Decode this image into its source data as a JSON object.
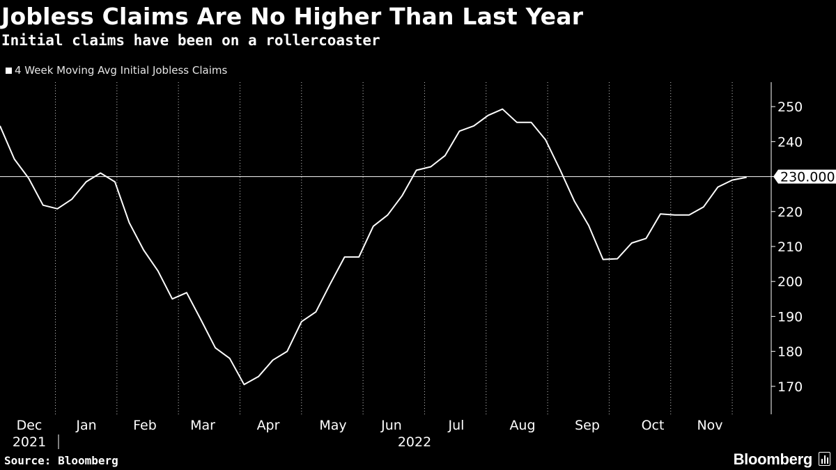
{
  "header": {
    "title": "Jobless Claims Are No Higher Than Last Year",
    "subtitle": "Initial claims have been on a rollercoaster"
  },
  "footer": {
    "source": "Source: Bloomberg",
    "brand": "Bloomberg"
  },
  "colors": {
    "background": "#000000",
    "line": "#ffffff",
    "grid": "#ffffff",
    "text": "#ffffff"
  },
  "chart_data": {
    "type": "line",
    "title": "Jobless Claims Are No Higher Than Last Year",
    "subtitle": "Initial claims have been on a rollercoaster",
    "xlabel": "",
    "ylabel": "",
    "y_axis_side": "right",
    "ylim": [
      162,
      257
    ],
    "y_ticks": [
      170,
      180,
      190,
      200,
      210,
      220,
      230,
      240,
      250
    ],
    "grid": "vertical dotted",
    "legend": "top-left",
    "reference_line": {
      "value": 230,
      "label": "230.000"
    },
    "x_month_labels": [
      "Dec",
      "Jan",
      "Feb",
      "Mar",
      "Apr",
      "May",
      "Jun",
      "Jul",
      "Aug",
      "Sep",
      "Oct",
      "Nov"
    ],
    "x_year_labels": [
      "2021",
      "2022"
    ],
    "x_range": [
      "2021-11-27",
      "2022-12-08"
    ],
    "x_gridlines": [
      "2021-12-24",
      "2022-01-23",
      "2022-02-22",
      "2022-03-24",
      "2022-04-23",
      "2022-05-23",
      "2022-06-22",
      "2022-07-22",
      "2022-08-21",
      "2022-09-20",
      "2022-10-20",
      "2022-11-19"
    ],
    "series": [
      {
        "name": "4 Week Moving Avg Initial Jobless Claims",
        "x": [
          "2021-11-27",
          "2021-12-04",
          "2021-12-11",
          "2021-12-18",
          "2021-12-25",
          "2022-01-01",
          "2022-01-08",
          "2022-01-15",
          "2022-01-22",
          "2022-01-29",
          "2022-02-05",
          "2022-02-12",
          "2022-02-19",
          "2022-02-26",
          "2022-03-05",
          "2022-03-12",
          "2022-03-19",
          "2022-03-26",
          "2022-04-02",
          "2022-04-09",
          "2022-04-16",
          "2022-04-23",
          "2022-04-30",
          "2022-05-07",
          "2022-05-14",
          "2022-05-21",
          "2022-05-28",
          "2022-06-04",
          "2022-06-11",
          "2022-06-18",
          "2022-06-25",
          "2022-07-02",
          "2022-07-09",
          "2022-07-16",
          "2022-07-23",
          "2022-07-30",
          "2022-08-06",
          "2022-08-13",
          "2022-08-20",
          "2022-08-27",
          "2022-09-03",
          "2022-09-10",
          "2022-09-17",
          "2022-09-24",
          "2022-10-01",
          "2022-10-08",
          "2022-10-15",
          "2022-10-22",
          "2022-10-29",
          "2022-11-05",
          "2022-11-12",
          "2022-11-19",
          "2022-11-26"
        ],
        "values": [
          244.5,
          235.0,
          229.5,
          221.8,
          220.8,
          223.5,
          228.5,
          231.0,
          228.5,
          216.8,
          209.0,
          203.0,
          195.0,
          196.8,
          189.0,
          181.0,
          178.0,
          170.5,
          172.8,
          177.5,
          180.0,
          188.5,
          191.3,
          199.3,
          207.0,
          207.0,
          215.8,
          219.0,
          224.5,
          231.8,
          232.8,
          236.0,
          243.0,
          244.5,
          247.5,
          249.3,
          245.5,
          245.5,
          240.5,
          232.0,
          223.0,
          216.0,
          206.3,
          206.5,
          211.0,
          212.3,
          219.3,
          219.0,
          219.0,
          221.3,
          227.0,
          229.0,
          229.8
        ]
      }
    ]
  }
}
